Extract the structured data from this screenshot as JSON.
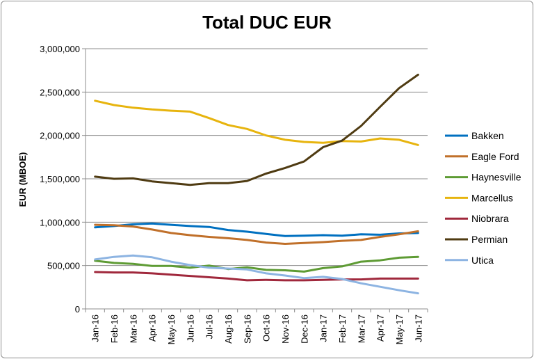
{
  "chart_data": {
    "type": "line",
    "title": "Total DUC EUR",
    "xlabel": "",
    "ylabel": "EUR (MBOE)",
    "ylim": [
      0,
      3000000
    ],
    "yticks": [
      0,
      500000,
      1000000,
      1500000,
      2000000,
      2500000,
      3000000
    ],
    "ytick_labels": [
      "0",
      "500,000",
      "1,000,000",
      "1,500,000",
      "2,000,000",
      "2,500,000",
      "3,000,000"
    ],
    "grid": "horizontal",
    "legend_position": "right",
    "categories": [
      "Jan-16",
      "Feb-16",
      "Mar-16",
      "Apr-16",
      "May-16",
      "Jun-16",
      "Jul-16",
      "Aug-16",
      "Sep-16",
      "Oct-16",
      "Nov-16",
      "Dec-16",
      "Jan-17",
      "Feb-17",
      "Mar-17",
      "Apr-17",
      "May-17",
      "Jun-17"
    ],
    "series": [
      {
        "name": "Bakken",
        "color": "#0070C0",
        "values": [
          940000,
          955000,
          975000,
          985000,
          970000,
          955000,
          945000,
          910000,
          890000,
          865000,
          840000,
          845000,
          850000,
          845000,
          860000,
          855000,
          870000,
          875000
        ]
      },
      {
        "name": "Eagle Ford",
        "color": "#C0702A",
        "values": [
          970000,
          965000,
          950000,
          915000,
          875000,
          850000,
          830000,
          815000,
          795000,
          765000,
          750000,
          760000,
          770000,
          785000,
          795000,
          830000,
          860000,
          895000
        ]
      },
      {
        "name": "Haynesville",
        "color": "#5E9B34",
        "values": [
          555000,
          530000,
          520000,
          495000,
          495000,
          475000,
          500000,
          460000,
          480000,
          450000,
          445000,
          430000,
          470000,
          490000,
          545000,
          560000,
          590000,
          600000
        ]
      },
      {
        "name": "Marcellus",
        "color": "#E7B40E",
        "values": [
          2400000,
          2350000,
          2320000,
          2300000,
          2285000,
          2275000,
          2200000,
          2120000,
          2075000,
          2000000,
          1950000,
          1925000,
          1915000,
          1935000,
          1930000,
          1965000,
          1950000,
          1890000
        ]
      },
      {
        "name": "Niobrara",
        "color": "#A0283C",
        "values": [
          425000,
          420000,
          420000,
          410000,
          395000,
          380000,
          365000,
          350000,
          330000,
          335000,
          330000,
          330000,
          335000,
          340000,
          340000,
          350000,
          350000,
          350000
        ]
      },
      {
        "name": "Permian",
        "color": "#4F3B12",
        "values": [
          1525000,
          1500000,
          1505000,
          1470000,
          1450000,
          1430000,
          1450000,
          1450000,
          1475000,
          1560000,
          1625000,
          1700000,
          1865000,
          1940000,
          2110000,
          2330000,
          2545000,
          2700000
        ]
      },
      {
        "name": "Utica",
        "color": "#8DB4E2",
        "values": [
          570000,
          600000,
          615000,
          595000,
          545000,
          505000,
          475000,
          465000,
          455000,
          410000,
          385000,
          355000,
          370000,
          345000,
          295000,
          255000,
          215000,
          180000
        ]
      }
    ]
  }
}
